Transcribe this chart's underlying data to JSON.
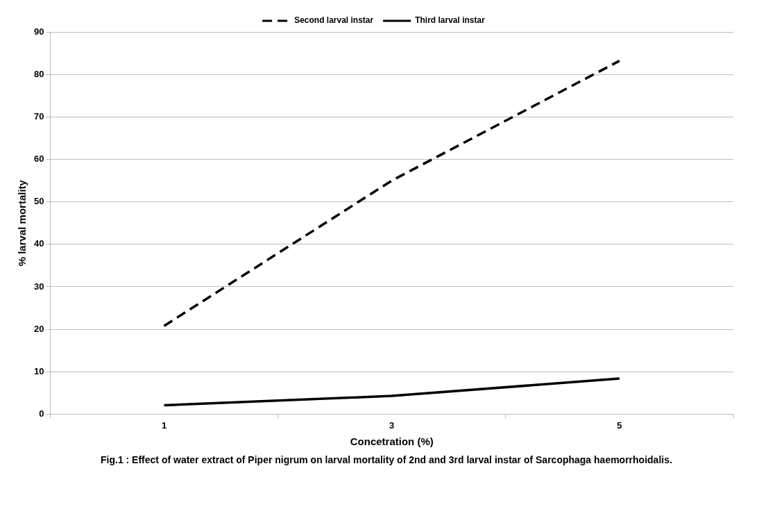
{
  "chart_data": {
    "type": "line",
    "xlabel": "Concetration (%)",
    "ylabel": "% larval mortality",
    "categories": [
      "1",
      "3",
      "5"
    ],
    "series": [
      {
        "name": "Second larval instar",
        "color": "#000000",
        "line_style": "dashed",
        "values": [
          20.8,
          55,
          83.2
        ]
      },
      {
        "name": "Third larval instar",
        "color": "#000000",
        "line_style": "solid",
        "values": [
          2.1,
          4.3,
          8.4
        ]
      }
    ],
    "ylim": [
      0,
      90
    ],
    "yticks": [
      0,
      10,
      20,
      30,
      40,
      50,
      60,
      70,
      80,
      90
    ],
    "grid": "y",
    "legend": "top",
    "marker": "none",
    "annotations": [
      "Fig.1 : Effect of water extract of Piper nigrum on larval mortality of 2nd and 3rd larval instar of Sarcophaga haemorrhoidalis."
    ]
  }
}
